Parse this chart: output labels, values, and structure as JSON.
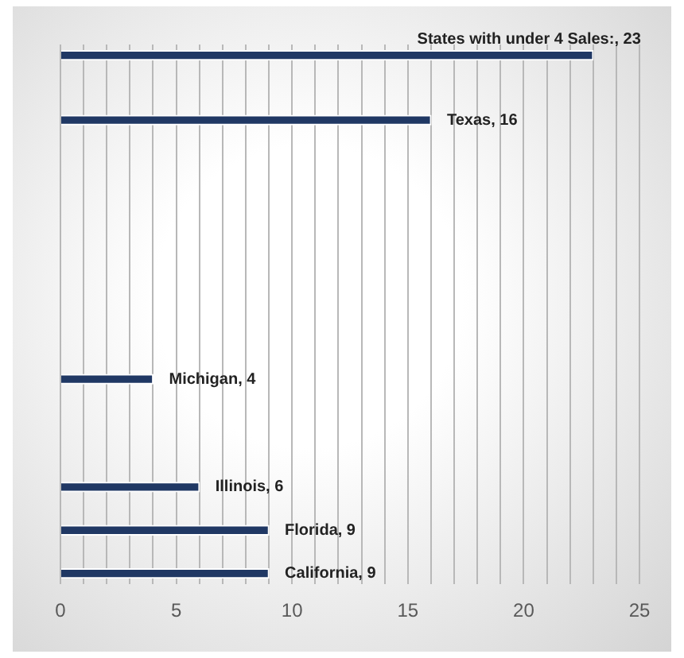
{
  "chart_data": {
    "type": "bar",
    "orientation": "horizontal",
    "categories": [
      null,
      null,
      null,
      null,
      null,
      null,
      null,
      null,
      null,
      null,
      null,
      null,
      null,
      null,
      null,
      null,
      null,
      null,
      null,
      null,
      null,
      null,
      null,
      null,
      null
    ],
    "series": [
      {
        "color": "#203864",
        "values": [
          23,
          null,
          null,
          16,
          null,
          null,
          null,
          null,
          null,
          null,
          null,
          null,
          null,
          null,
          null,
          4,
          null,
          null,
          null,
          null,
          6,
          null,
          9,
          null,
          9
        ],
        "value_labels": [
          "States with under 4 Sales:, 23",
          null,
          null,
          "Texas, 16",
          null,
          null,
          null,
          null,
          null,
          null,
          null,
          null,
          null,
          null,
          null,
          "Michigan, 4",
          null,
          null,
          null,
          null,
          "Illinois, 6",
          null,
          "Florida, 9",
          null,
          "California, 9"
        ]
      }
    ],
    "xlim": [
      0,
      25
    ],
    "xticks": [
      0,
      {
        "value": 1,
        "label": null
      },
      {
        "value": 2,
        "label": null
      },
      {
        "value": 3,
        "label": null
      },
      {
        "value": 4,
        "label": null
      },
      5,
      {
        "value": 6,
        "label": null
      },
      {
        "value": 7,
        "label": null
      },
      {
        "value": 8,
        "label": null
      },
      {
        "value": 9,
        "label": null
      },
      10,
      {
        "value": 11,
        "label": null
      },
      {
        "value": 12,
        "label": null
      },
      {
        "value": 13,
        "label": null
      },
      {
        "value": 14,
        "label": null
      },
      15,
      {
        "value": 16,
        "label": null
      },
      {
        "value": 17,
        "label": null
      },
      {
        "value": 18,
        "label": null
      },
      {
        "value": 19,
        "label": null
      },
      20,
      {
        "value": 21,
        "label": null
      },
      {
        "value": 22,
        "label": null
      },
      {
        "value": 23,
        "label": null
      },
      {
        "value": 24,
        "label": null
      },
      25
    ],
    "grid": "x",
    "legend": false,
    "tick_labels": "x"
  }
}
